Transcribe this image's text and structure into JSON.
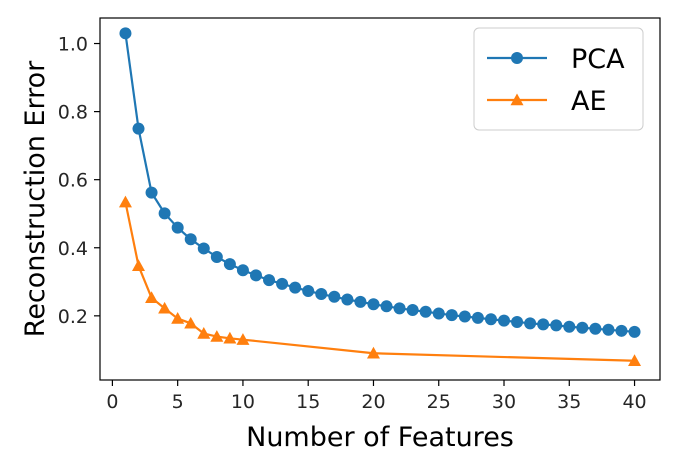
{
  "chart_data": {
    "type": "line",
    "xlabel": "Number of Features",
    "ylabel": "Reconstruction Error",
    "xlim": [
      -0.95,
      41.95
    ],
    "ylim": [
      0.0115,
      1.075
    ],
    "xticks": [
      0,
      5,
      10,
      15,
      20,
      25,
      30,
      35,
      40
    ],
    "yticks": [
      0.2,
      0.4,
      0.6,
      0.8,
      1.0
    ],
    "ytick_labels": [
      "0.2",
      "0.4",
      "0.6",
      "0.8",
      "1.0"
    ],
    "grid": false,
    "legend_position": "top-right",
    "series": [
      {
        "name": "PCA",
        "color": "#1f77b4",
        "marker": "circle",
        "x": [
          1,
          2,
          3,
          4,
          5,
          6,
          7,
          8,
          9,
          10,
          11,
          12,
          13,
          14,
          15,
          16,
          17,
          18,
          19,
          20,
          21,
          22,
          23,
          24,
          25,
          26,
          27,
          28,
          29,
          30,
          31,
          32,
          33,
          34,
          35,
          36,
          37,
          38,
          39,
          40
        ],
        "y": [
          1.03,
          0.75,
          0.562,
          0.501,
          0.459,
          0.425,
          0.398,
          0.373,
          0.352,
          0.334,
          0.319,
          0.305,
          0.294,
          0.283,
          0.273,
          0.264,
          0.256,
          0.248,
          0.241,
          0.234,
          0.228,
          0.222,
          0.217,
          0.212,
          0.207,
          0.202,
          0.198,
          0.194,
          0.19,
          0.186,
          0.182,
          0.178,
          0.175,
          0.172,
          0.168,
          0.165,
          0.162,
          0.159,
          0.156,
          0.153
        ]
      },
      {
        "name": "AE",
        "color": "#ff7f0e",
        "marker": "triangle",
        "x": [
          1,
          2,
          3,
          4,
          5,
          6,
          7,
          8,
          9,
          10,
          20,
          40
        ],
        "y": [
          0.534,
          0.347,
          0.253,
          0.222,
          0.192,
          0.178,
          0.148,
          0.139,
          0.134,
          0.13,
          0.09,
          0.068
        ]
      }
    ]
  }
}
